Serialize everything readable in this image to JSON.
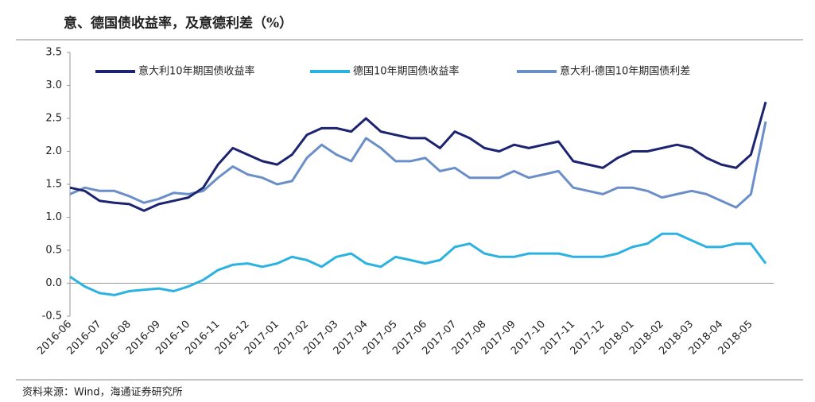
{
  "chart_data": {
    "type": "line",
    "title": "意、德国债收益率，及意德利差（%）",
    "source": "资料来源：Wind，海通证券研究所",
    "x": [
      "2016-06",
      "2016-06",
      "2016-07",
      "2016-07",
      "2016-08",
      "2016-08",
      "2016-09",
      "2016-09",
      "2016-10",
      "2016-10",
      "2016-11",
      "2016-11",
      "2016-12",
      "2016-12",
      "2017-01",
      "2017-01",
      "2017-02",
      "2017-02",
      "2017-03",
      "2017-03",
      "2017-04",
      "2017-04",
      "2017-05",
      "2017-05",
      "2017-06",
      "2017-06",
      "2017-07",
      "2017-07",
      "2017-08",
      "2017-08",
      "2017-09",
      "2017-09",
      "2017-10",
      "2017-10",
      "2017-11",
      "2017-11",
      "2017-12",
      "2017-12",
      "2018-01",
      "2018-01",
      "2018-02",
      "2018-02",
      "2018-03",
      "2018-03",
      "2018-04",
      "2018-04",
      "2018-05",
      "2018-05"
    ],
    "series": [
      {
        "name": "意大利10年期国债收益率",
        "color": "#1c2370",
        "values": [
          1.45,
          1.4,
          1.25,
          1.22,
          1.2,
          1.1,
          1.2,
          1.25,
          1.3,
          1.45,
          1.8,
          2.05,
          1.95,
          1.85,
          1.8,
          1.95,
          2.25,
          2.35,
          2.35,
          2.3,
          2.5,
          2.3,
          2.25,
          2.2,
          2.2,
          2.05,
          2.3,
          2.2,
          2.05,
          2.0,
          2.1,
          2.05,
          2.1,
          2.15,
          1.85,
          1.8,
          1.75,
          1.9,
          2.0,
          2.0,
          2.05,
          2.1,
          2.05,
          1.9,
          1.8,
          1.75,
          1.95,
          2.75
        ]
      },
      {
        "name": "德国10年期国债收益率",
        "color": "#2bb2e0",
        "values": [
          0.1,
          -0.05,
          -0.15,
          -0.18,
          -0.12,
          -0.1,
          -0.08,
          -0.12,
          -0.05,
          0.05,
          0.2,
          0.28,
          0.3,
          0.25,
          0.3,
          0.4,
          0.35,
          0.25,
          0.4,
          0.45,
          0.3,
          0.25,
          0.4,
          0.35,
          0.3,
          0.35,
          0.55,
          0.6,
          0.45,
          0.4,
          0.4,
          0.45,
          0.45,
          0.45,
          0.4,
          0.4,
          0.4,
          0.45,
          0.55,
          0.6,
          0.75,
          0.75,
          0.65,
          0.55,
          0.55,
          0.6,
          0.6,
          0.3
        ]
      },
      {
        "name": "意大利-德国10年期国债利差",
        "color": "#6a8fc8",
        "values": [
          1.35,
          1.45,
          1.4,
          1.4,
          1.32,
          1.22,
          1.28,
          1.37,
          1.35,
          1.4,
          1.6,
          1.77,
          1.65,
          1.6,
          1.5,
          1.55,
          1.9,
          2.1,
          1.95,
          1.85,
          2.2,
          2.05,
          1.85,
          1.85,
          1.9,
          1.7,
          1.75,
          1.6,
          1.6,
          1.6,
          1.7,
          1.6,
          1.65,
          1.7,
          1.45,
          1.4,
          1.35,
          1.45,
          1.45,
          1.4,
          1.3,
          1.35,
          1.4,
          1.35,
          1.25,
          1.15,
          1.35,
          2.45
        ]
      }
    ],
    "ylim": [
      -0.5,
      3.5
    ],
    "yticks": [
      -0.5,
      {
        "value": 0,
        "label": "0.0"
      },
      0.5,
      {
        "value": 1,
        "label": "1.0"
      },
      1.5,
      {
        "value": 2,
        "label": "2.0"
      },
      2.5,
      {
        "value": 3,
        "label": "3.0"
      },
      3.5
    ]
  }
}
